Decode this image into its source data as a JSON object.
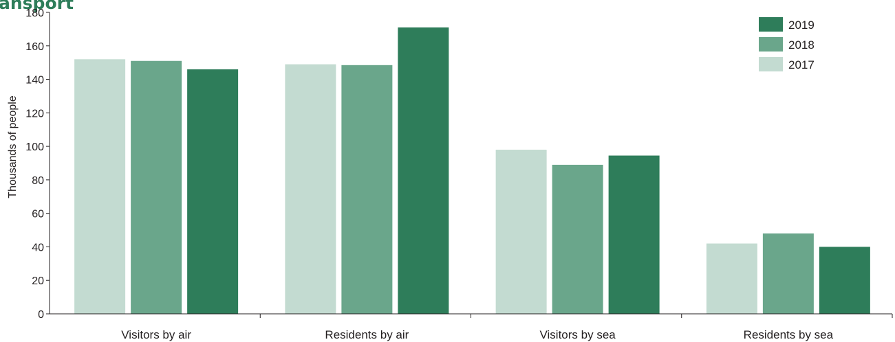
{
  "chart_data": {
    "type": "bar",
    "title": "ansport",
    "xlabel": "",
    "ylabel": "Thousands of people",
    "ylim": [
      0,
      180
    ],
    "yticks": [
      0,
      20,
      40,
      60,
      80,
      100,
      120,
      140,
      160,
      180
    ],
    "grid": false,
    "legend_position": "top-right",
    "categories": [
      "Visitors by air",
      "Residents by air",
      "Visitors by sea",
      "Residents by sea"
    ],
    "series": [
      {
        "name": "2017",
        "color": "#c3dbd1",
        "values": [
          152,
          149,
          98,
          42
        ]
      },
      {
        "name": "2018",
        "color": "#6aa68b",
        "values": [
          151,
          148.5,
          89,
          48
        ]
      },
      {
        "name": "2019",
        "color": "#2e7d5a",
        "values": [
          146,
          171,
          94.5,
          40
        ]
      }
    ],
    "legend_order": [
      "2019",
      "2018",
      "2017"
    ]
  }
}
